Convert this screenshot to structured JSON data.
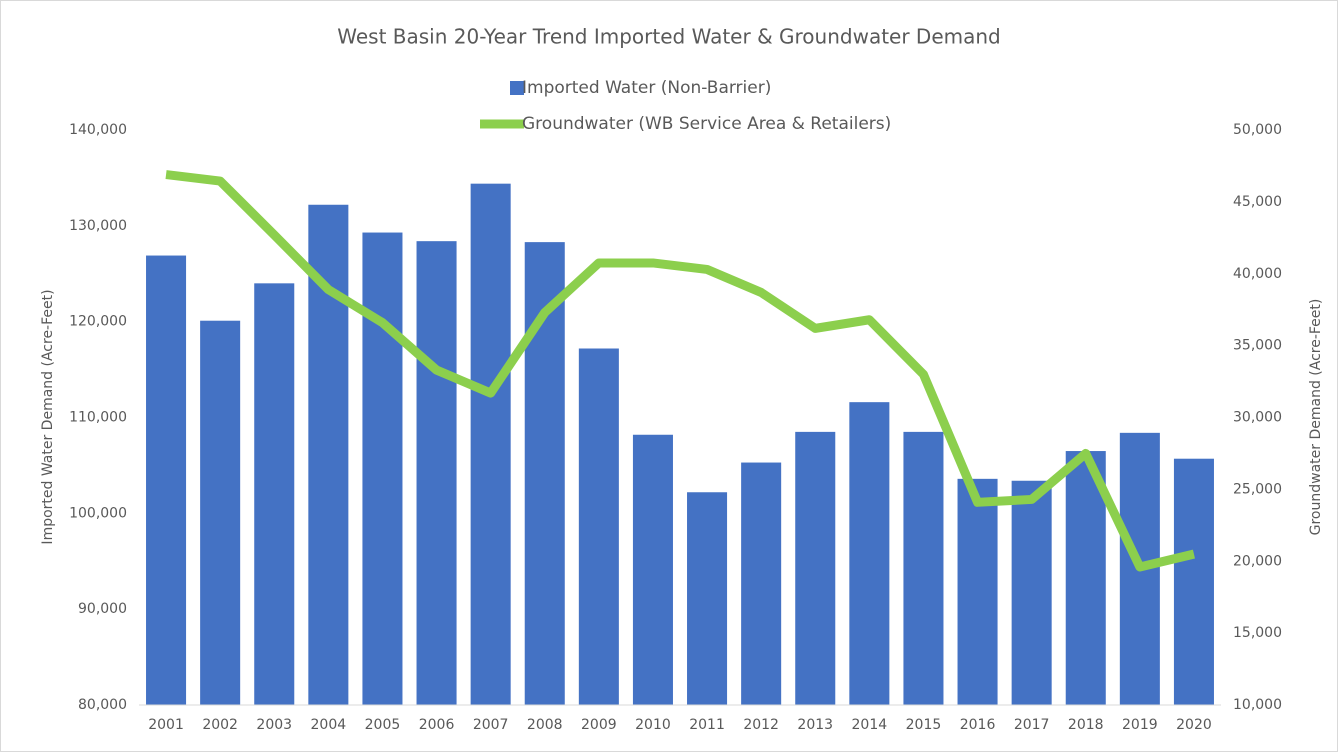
{
  "chart_data": {
    "type": "bar-line",
    "title": "West Basin 20-Year Trend Imported Water & Groundwater Demand",
    "ylabel": "Imported Water Demand (Acre-Feet)",
    "y2label": "Groundwater Demand (Acre-Feet)",
    "categories": [
      "2001",
      "2002",
      "2003",
      "2004",
      "2005",
      "2006",
      "2007",
      "2008",
      "2009",
      "2010",
      "2011",
      "2012",
      "2013",
      "2014",
      "2015",
      "2016",
      "2017",
      "2018",
      "2019",
      "2020"
    ],
    "series": [
      {
        "name": "Imported Water (Non-Barrier)",
        "type": "bar",
        "color": "#4472c4",
        "values": [
          126900,
          120100,
          124000,
          132200,
          129300,
          128400,
          134400,
          128300,
          117200,
          108200,
          102200,
          105300,
          108500,
          111600,
          108500,
          103600,
          103400,
          106500,
          108400,
          105700
        ]
      },
      {
        "name": "Groundwater (WB Service Area & Retailers)",
        "type": "line",
        "axis": "y2",
        "color": "#8ccf4d",
        "values": [
          46900,
          46450,
          42700,
          38900,
          36600,
          33300,
          31700,
          37300,
          40750,
          40750,
          40300,
          38700,
          36200,
          36800,
          33000,
          24100,
          24300,
          27500,
          19600,
          20500
        ]
      }
    ],
    "ylim": [
      80000,
      140000
    ],
    "yticks": [
      {
        "value": 80000,
        "label": "80,000"
      },
      {
        "value": 90000,
        "label": "90,000"
      },
      {
        "value": 100000,
        "label": "100,000"
      },
      {
        "value": 110000,
        "label": "110,000"
      },
      {
        "value": 120000,
        "label": "120,000"
      },
      {
        "value": 130000,
        "label": "130,000"
      },
      {
        "value": 140000,
        "label": "140,000"
      }
    ],
    "y2lim": [
      10000,
      50000
    ],
    "y2ticks": [
      {
        "value": 10000,
        "label": "10,000"
      },
      {
        "value": 15000,
        "label": "15,000"
      },
      {
        "value": 20000,
        "label": "20,000"
      },
      {
        "value": 25000,
        "label": "25,000"
      },
      {
        "value": 30000,
        "label": "30,000"
      },
      {
        "value": 35000,
        "label": "35,000"
      },
      {
        "value": 40000,
        "label": "40,000"
      },
      {
        "value": 45000,
        "label": "45,000"
      },
      {
        "value": 50000,
        "label": "50,000"
      }
    ],
    "legend": "top"
  }
}
